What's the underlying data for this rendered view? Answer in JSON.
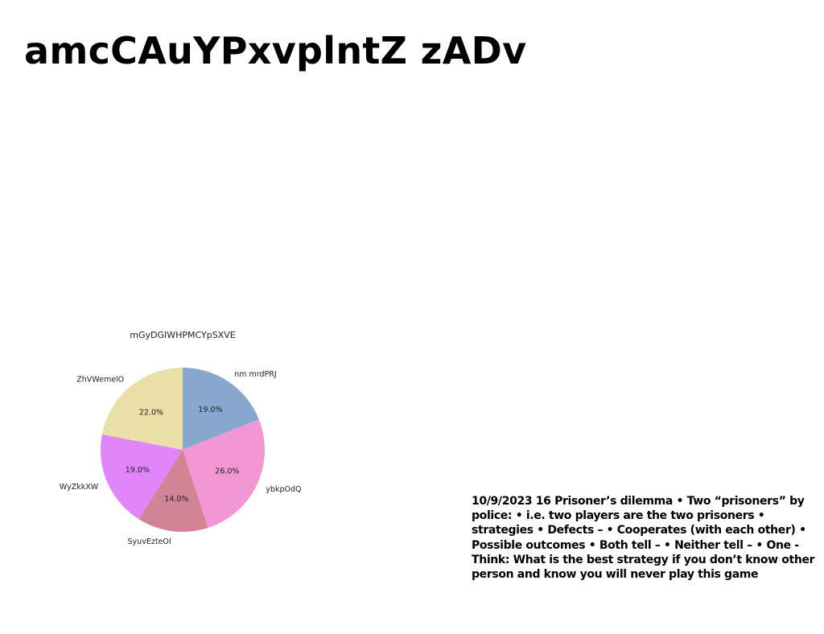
{
  "page": {
    "title": "amcCAuYPxvplntZ zADv",
    "body_text": "10/9/2023 16 Prisoner’s dilemma • Two “prisoners” by police: • i.e. two players are the two prisoners • strategies • Defects – • Cooperates (with each other) • Possible outcomes • Both tell – • Neither tell – • One - Think: What is the best strategy if you don’t know other person and know you will never play this game"
  },
  "chart_data": {
    "type": "pie",
    "title": "mGyDGIWHPMCYpSXVE",
    "start_angle_deg": 90,
    "direction": "clockwise",
    "slices": [
      {
        "label": "nm mrdPRJ",
        "value": 19.0,
        "pct_label": "19.0%",
        "color": "#87a7cf"
      },
      {
        "label": "ybkpOdQ",
        "value": 26.0,
        "pct_label": "26.0%",
        "color": "#f296d4"
      },
      {
        "label": "SyuvEzteOI",
        "value": 14.0,
        "pct_label": "14.0%",
        "color": "#d28496"
      },
      {
        "label": "WyZkkXW",
        "value": 19.0,
        "pct_label": "19.0%",
        "color": "#e085fa"
      },
      {
        "label": "ZhVWemelO",
        "value": 22.0,
        "pct_label": "22.0%",
        "color": "#ebdfa8"
      }
    ]
  }
}
